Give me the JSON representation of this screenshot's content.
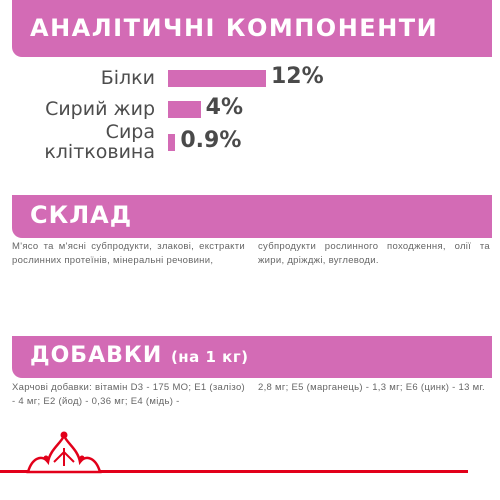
{
  "analytical": {
    "title": "АНАЛІТИЧНІ КОМПОНЕНТИ",
    "items": [
      {
        "label_lines": [
          "Білки"
        ],
        "value_text": "12%",
        "value": 12
      },
      {
        "label_lines": [
          "Сирий жир"
        ],
        "value_text": "4%",
        "value": 4
      },
      {
        "label_lines": [
          "Сира",
          "клітковина"
        ],
        "value_text": "0.9%",
        "value": 0.9
      }
    ]
  },
  "chart_data": {
    "type": "bar",
    "categories": [
      "Білки",
      "Сирий жир",
      "Сира клітковина"
    ],
    "values": [
      12,
      4,
      0.9
    ],
    "title": "АНАЛІТИЧНІ КОМПОНЕНТИ",
    "xlabel": "",
    "ylabel": "",
    "orientation": "horizontal",
    "grid": false,
    "bar_color": "#d36bb5"
  },
  "composition": {
    "title": "СКЛАД",
    "col1": "М'ясо та м'ясні субпродукти, злакові, екстракти рослинних протеїнів, мінеральні речовини,",
    "col2": "субпродукти рослинного походження, олії та жири, дріжджі, вуглеводи."
  },
  "additives": {
    "title": "ДОБАВКИ",
    "subtitle": "(на 1 кг)",
    "col1": "Харчові добавки: вітамін D3 - 175 МО; E1 (залізо) - 4 мг; E2 (йод) - 0,36 мг; E4 (мідь) -",
    "col2": "2,8 мг; E5 (марганець) - 1,3 мг; E6 (цинк) - 13 мг."
  },
  "colors": {
    "accent": "#d36bb5",
    "brand_red": "#e2001a"
  },
  "icons": {
    "logo": "royal-crown-icon"
  }
}
